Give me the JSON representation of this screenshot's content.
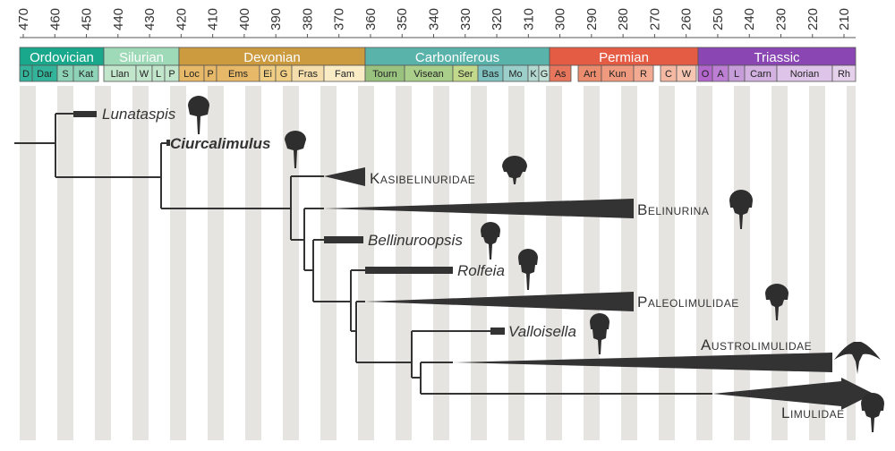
{
  "scale": {
    "ticks": [
      "470",
      "460",
      "450",
      "440",
      "430",
      "420",
      "410",
      "400",
      "390",
      "380",
      "370",
      "360",
      "350",
      "340",
      "330",
      "320",
      "310",
      "300",
      "290",
      "280",
      "270",
      "260",
      "250",
      "240",
      "230",
      "220",
      "210"
    ]
  },
  "periods": [
    {
      "name": "Ordovician",
      "color": "#1aa88c"
    },
    {
      "name": "Silurian",
      "color": "#9ed9b8"
    },
    {
      "name": "Devonian",
      "color": "#cc9a3f"
    },
    {
      "name": "Carboniferous",
      "color": "#5ab3ab"
    },
    {
      "name": "Permian",
      "color": "#e55c45"
    },
    {
      "name": "Triassic",
      "color": "#8a47b3"
    }
  ],
  "stages": [
    {
      "name": "D",
      "color": "#33b49a"
    },
    {
      "name": "Dar",
      "color": "#33b49a"
    },
    {
      "name": "S",
      "color": "#8ed3b8"
    },
    {
      "name": "Kat",
      "color": "#8ed3b8"
    },
    {
      "name": "Llan",
      "color": "#c2e6cc"
    },
    {
      "name": "W",
      "color": "#c2e6cc"
    },
    {
      "name": "L",
      "color": "#c2e6cc"
    },
    {
      "name": "P",
      "color": "#c2e6cc"
    },
    {
      "name": "Loc",
      "color": "#e6b867"
    },
    {
      "name": "P",
      "color": "#e6b867"
    },
    {
      "name": "Ems",
      "color": "#e6b867"
    },
    {
      "name": "Ei",
      "color": "#f0cf85"
    },
    {
      "name": "G",
      "color": "#f0cf85"
    },
    {
      "name": "Fras",
      "color": "#f5deab"
    },
    {
      "name": "Fam",
      "color": "#faedc6"
    },
    {
      "name": "Tourn",
      "color": "#99c27f"
    },
    {
      "name": "Visean",
      "color": "#aacf8a"
    },
    {
      "name": "Ser",
      "color": "#c2d98c"
    },
    {
      "name": "Bas",
      "color": "#7fc2bf"
    },
    {
      "name": "Mo",
      "color": "#9ccfc9"
    },
    {
      "name": "K",
      "color": "#b3d9d1"
    },
    {
      "name": "G",
      "color": "#c2e0d6"
    },
    {
      "name": "As",
      "color": "#e8765c"
    },
    {
      "name": "Art",
      "color": "#ec8c6e"
    },
    {
      "name": "Kun",
      "color": "#ef9a7f"
    },
    {
      "name": "R",
      "color": "#f2ab92"
    },
    {
      "name": "C",
      "color": "#f4b8a3"
    },
    {
      "name": "W",
      "color": "#f6c6b3"
    },
    {
      "name": "O",
      "color": "#b366cc"
    },
    {
      "name": "A",
      "color": "#bd7fd4"
    },
    {
      "name": "L",
      "color": "#c69cd9"
    },
    {
      "name": "Carn",
      "color": "#d3b1e0"
    },
    {
      "name": "Norian",
      "color": "#dec4e8"
    },
    {
      "name": "Rh",
      "color": "#e6d1ed"
    }
  ],
  "taxa": {
    "lunataspis": "Lunataspis",
    "ciurcalimulus": "Ciurcalimulus",
    "kasibelinuridae": "Kasibelinuridae",
    "belinurina": "Belinurina",
    "bellinuroopsis": "Bellinuroopsis",
    "rolfeia": "Rolfeia",
    "paleolimulidae": "Paleolimulidae",
    "valloisella": "Valloisella",
    "austrolimulidae": "Austrolimulidae",
    "limulidae": "Limulidae"
  },
  "colors": {
    "tree": "#333333",
    "band": "#e6e4e1",
    "silhouette": "#2e2e2e"
  }
}
